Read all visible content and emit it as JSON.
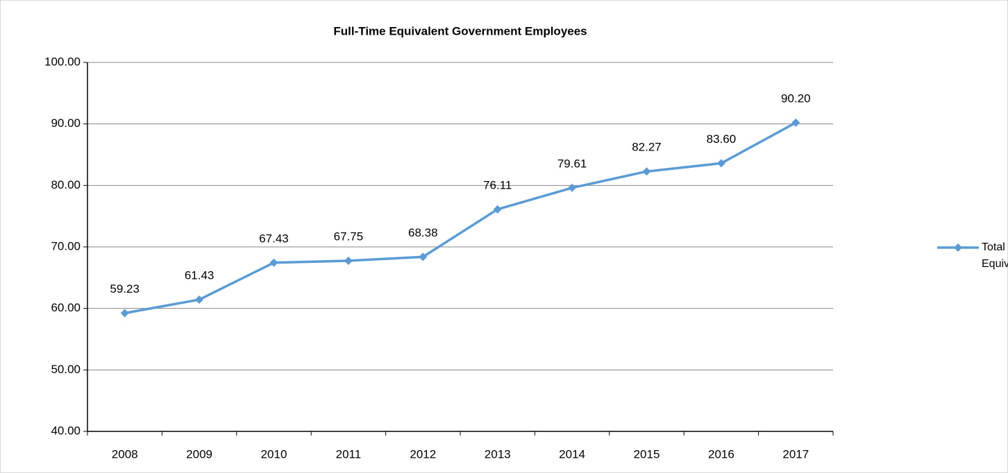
{
  "chart_data": {
    "type": "line",
    "title": "Full-Time Equivalent Government Employees",
    "categories": [
      "2008",
      "2009",
      "2010",
      "2011",
      "2012",
      "2013",
      "2014",
      "2015",
      "2016",
      "2017"
    ],
    "series": [
      {
        "name": "Total Full-time Equivalents",
        "color": "#5B9BD5",
        "values": [
          59.23,
          61.43,
          67.43,
          67.75,
          68.38,
          76.11,
          79.61,
          82.27,
          83.6,
          90.2
        ],
        "value_labels": [
          "59.23",
          "61.43",
          "67.43",
          "67.75",
          "68.38",
          "76.11",
          "79.61",
          "82.27",
          "83.60",
          "90.20"
        ]
      }
    ],
    "ylim": [
      40,
      100
    ],
    "yticks": [
      {
        "value": 40,
        "label": "40.00"
      },
      {
        "value": 50,
        "label": "50.00"
      },
      {
        "value": 60,
        "label": "60.00"
      },
      {
        "value": 70,
        "label": "70.00"
      },
      {
        "value": 80,
        "label": "80.00"
      },
      {
        "value": 90,
        "label": "90.00"
      },
      {
        "value": 100,
        "label": "100.00"
      }
    ],
    "grid": true,
    "legend": "right"
  }
}
